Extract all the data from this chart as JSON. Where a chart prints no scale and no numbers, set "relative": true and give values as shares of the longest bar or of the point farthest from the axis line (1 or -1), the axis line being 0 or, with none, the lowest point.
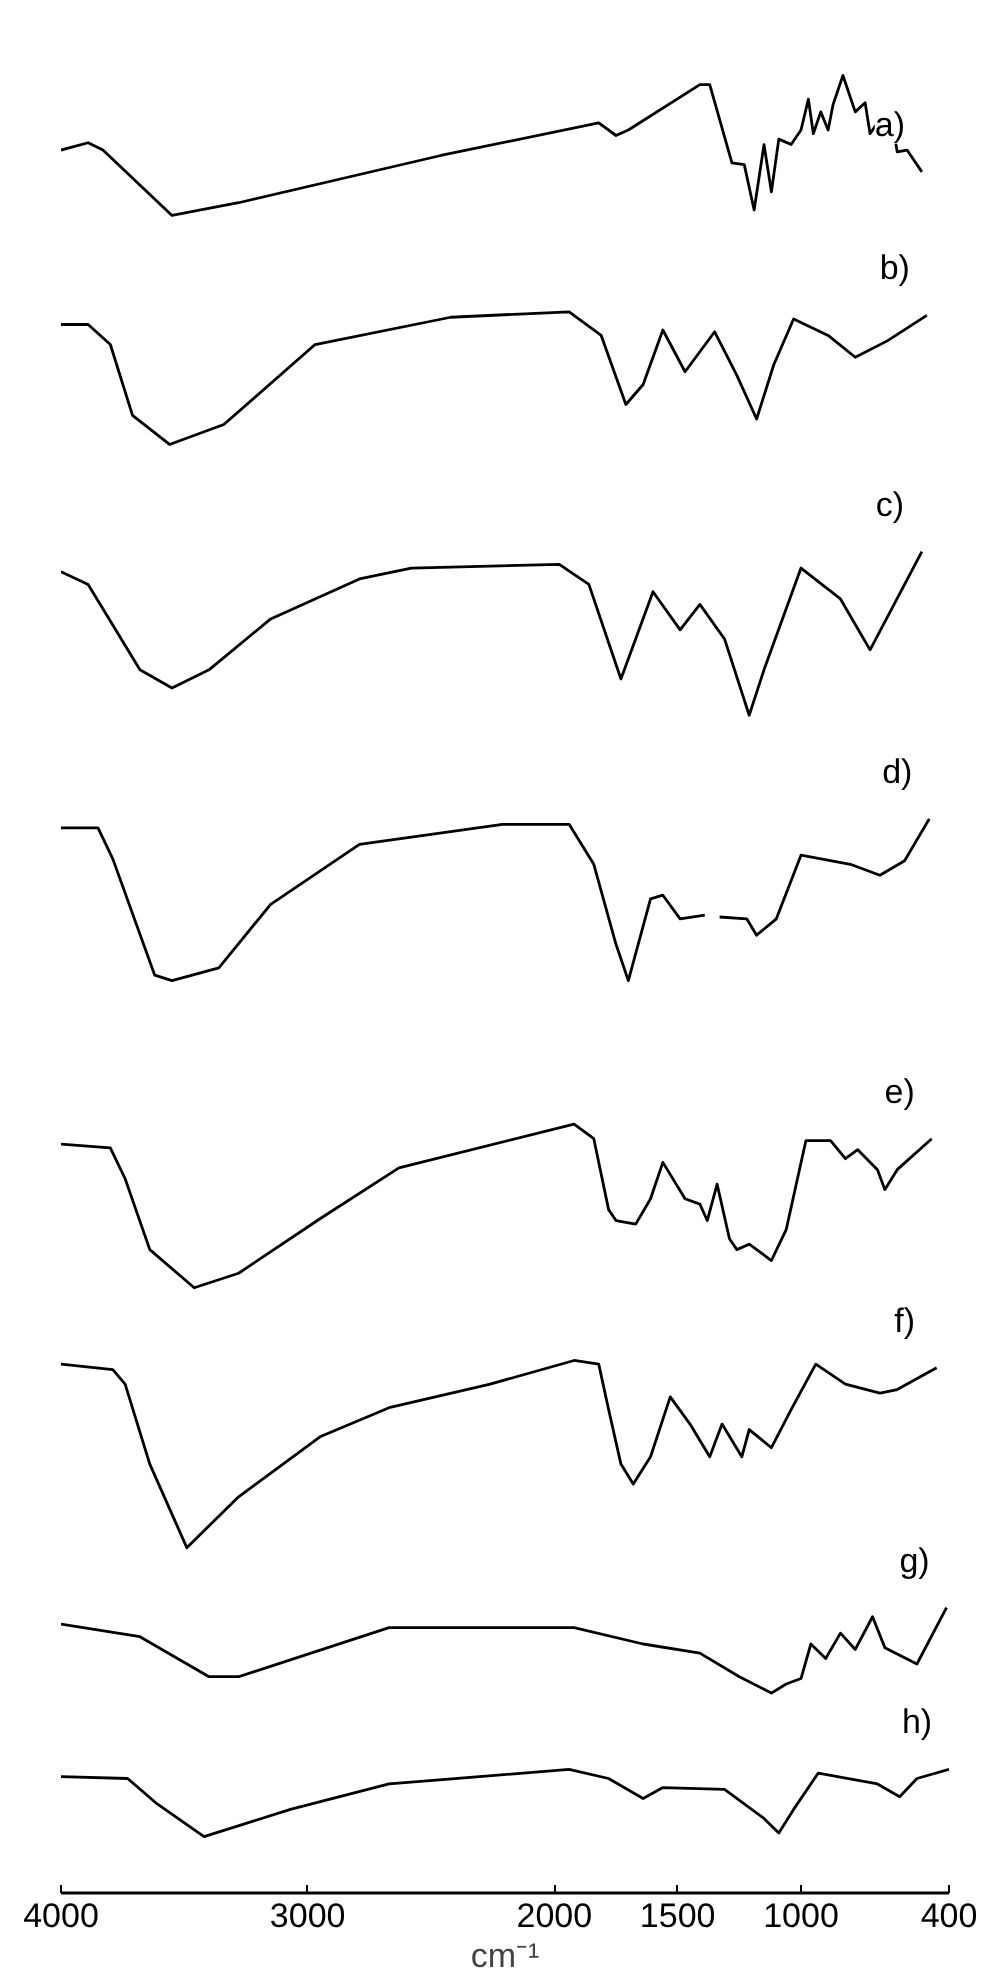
{
  "chart_data": {
    "type": "line",
    "relative": true,
    "xlabel": "cm⁻¹",
    "xlim": [
      4000,
      400
    ],
    "xticks": [
      4000,
      3000,
      2000,
      1500,
      1000,
      400
    ],
    "series": [
      {
        "name": "a)",
        "color": "#000000",
        "x": [
          4000,
          3890,
          3830,
          3550,
          3280,
          2460,
          1820,
          1750,
          1700,
          1410,
          1370,
          1280,
          1230,
          1190,
          1150,
          1120,
          1090,
          1040,
          1000,
          970,
          950,
          920,
          890,
          870,
          830,
          780,
          740,
          720,
          690,
          630,
          610,
          570,
          510
        ],
        "values": [
          0.959,
          0.963,
          0.959,
          0.923,
          0.93,
          0.956,
          0.974,
          0.967,
          0.97,
          0.995,
          0.995,
          0.952,
          0.951,
          0.926,
          0.962,
          0.936,
          0.965,
          0.962,
          0.97,
          0.987,
          0.968,
          0.98,
          0.97,
          0.984,
          1.0,
          0.98,
          0.985,
          0.968,
          0.974,
          0.975,
          0.958,
          0.959,
          0.947
        ]
      },
      {
        "name": "b)",
        "color": "#000000",
        "x": [
          4000,
          3890,
          3800,
          3710,
          3560,
          3340,
          2970,
          2420,
          1940,
          1810,
          1710,
          1640,
          1560,
          1470,
          1350,
          1260,
          1180,
          1110,
          1030,
          890,
          780,
          650,
          490
        ],
        "values": [
          0.863,
          0.863,
          0.852,
          0.813,
          0.797,
          0.808,
          0.852,
          0.867,
          0.87,
          0.857,
          0.819,
          0.83,
          0.86,
          0.837,
          0.859,
          0.835,
          0.811,
          0.841,
          0.866,
          0.857,
          0.845,
          0.854,
          0.868
        ]
      },
      {
        "name": "c)",
        "color": "#000000",
        "x": [
          4000,
          3890,
          3680,
          3550,
          3400,
          3150,
          2790,
          2580,
          1980,
          1860,
          1730,
          1600,
          1490,
          1410,
          1310,
          1210,
          1150,
          1000,
          840,
          720,
          510
        ],
        "values": [
          0.727,
          0.72,
          0.673,
          0.663,
          0.673,
          0.701,
          0.723,
          0.729,
          0.731,
          0.72,
          0.668,
          0.716,
          0.695,
          0.709,
          0.69,
          0.648,
          0.673,
          0.729,
          0.712,
          0.684,
          0.738
        ]
      },
      {
        "name": "d)",
        "color": "#000000",
        "x": [
          4000,
          3850,
          3790,
          3620,
          3550,
          3360,
          3150,
          2790,
          2210,
          1940,
          1840,
          1750,
          1700,
          1610,
          1560,
          1490,
          1390,
          1360,
          1330,
          1220,
          1180,
          1100,
          1000,
          800,
          680,
          580,
          480
        ],
        "values": [
          0.586,
          0.586,
          0.569,
          0.505,
          0.502,
          0.509,
          0.544,
          0.577,
          0.588,
          0.588,
          0.566,
          0.522,
          0.502,
          0.547,
          0.549,
          0.536,
          0.538,
          null,
          0.537,
          0.536,
          0.527,
          0.536,
          0.571,
          0.566,
          0.56,
          0.568,
          0.591
        ]
      },
      {
        "name": "e)",
        "color": "#000000",
        "x": [
          4000,
          3800,
          3740,
          3640,
          3460,
          3280,
          2950,
          2630,
          1920,
          1840,
          1780,
          1750,
          1670,
          1610,
          1560,
          1470,
          1410,
          1380,
          1340,
          1290,
          1260,
          1210,
          1120,
          1060,
          980,
          880,
          820,
          770,
          690,
          660,
          610,
          470
        ],
        "values": [
          0.412,
          0.41,
          0.393,
          0.354,
          0.333,
          0.341,
          0.371,
          0.399,
          0.423,
          0.415,
          0.376,
          0.37,
          0.368,
          0.382,
          0.402,
          0.382,
          0.379,
          0.37,
          0.39,
          0.36,
          0.354,
          0.357,
          0.348,
          0.365,
          0.414,
          0.414,
          0.404,
          0.409,
          0.398,
          0.387,
          0.398,
          0.415
        ]
      },
      {
        "name": "f)",
        "color": "#000000",
        "x": [
          4000,
          3790,
          3740,
          3640,
          3490,
          3280,
          2950,
          2670,
          2260,
          1920,
          1820,
          1780,
          1730,
          1680,
          1610,
          1530,
          1450,
          1370,
          1320,
          1240,
          1210,
          1120,
          1040,
          940,
          820,
          680,
          610,
          450
        ],
        "values": [
          0.291,
          0.288,
          0.28,
          0.236,
          0.19,
          0.218,
          0.251,
          0.267,
          0.28,
          0.293,
          0.291,
          0.266,
          0.236,
          0.225,
          0.24,
          0.273,
          0.258,
          0.24,
          0.258,
          0.24,
          0.255,
          0.245,
          0.266,
          0.291,
          0.28,
          0.275,
          0.277,
          0.289
        ]
      },
      {
        "name": "g)",
        "color": "#000000",
        "x": [
          4000,
          3680,
          3400,
          3280,
          2670,
          1920,
          1640,
          1410,
          1250,
          1120,
          1060,
          1000,
          960,
          900,
          840,
          780,
          710,
          660,
          530,
          410
        ],
        "values": [
          0.148,
          0.141,
          0.119,
          0.119,
          0.146,
          0.146,
          0.137,
          0.132,
          0.119,
          0.11,
          0.115,
          0.118,
          0.137,
          0.129,
          0.143,
          0.134,
          0.152,
          0.135,
          0.126,
          0.157
        ]
      },
      {
        "name": "h)",
        "color": "#000000",
        "x": [
          4000,
          3730,
          3610,
          3420,
          3070,
          2670,
          1940,
          1780,
          1640,
          1560,
          1310,
          1150,
          1090,
          1030,
          930,
          690,
          600,
          530,
          400
        ],
        "values": [
          0.064,
          0.063,
          0.049,
          0.031,
          0.046,
          0.06,
          0.068,
          0.063,
          0.052,
          0.058,
          0.057,
          0.041,
          0.033,
          0.046,
          0.066,
          0.06,
          0.053,
          0.063,
          0.068
        ]
      }
    ]
  }
}
